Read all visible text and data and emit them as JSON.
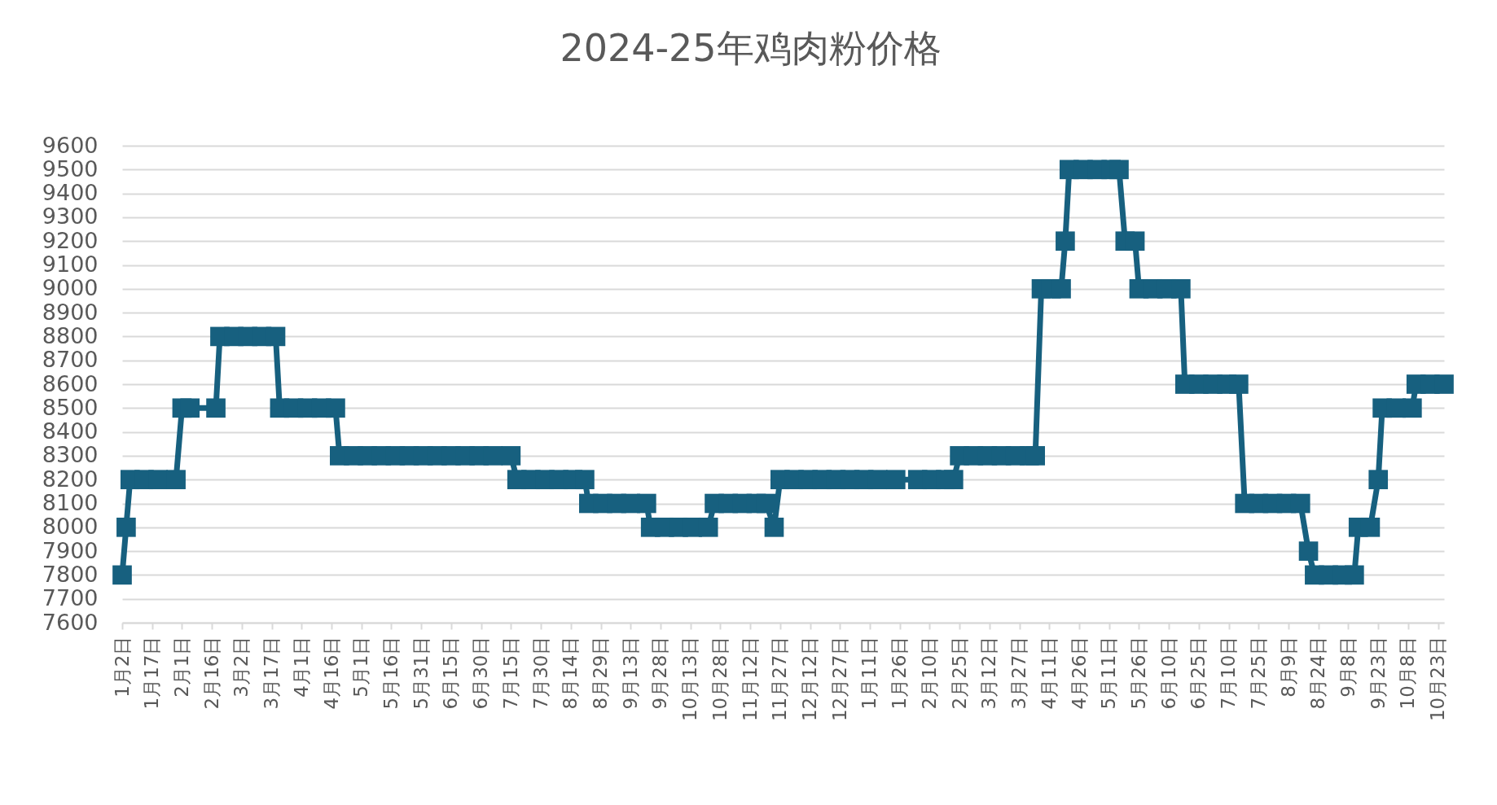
{
  "chart_data": {
    "type": "line",
    "title": "2024-25年鸡肉粉价格",
    "x": [
      "2024-01-02",
      "2024-01-04",
      "2024-01-06",
      "2024-01-13",
      "2024-01-20",
      "2024-01-29",
      "2024-02-01",
      "2024-02-05",
      "2024-02-18",
      "2024-02-20",
      "2024-02-27",
      "2024-03-05",
      "2024-03-12",
      "2024-03-19",
      "2024-03-21",
      "2024-03-28",
      "2024-04-04",
      "2024-04-11",
      "2024-04-18",
      "2024-04-20",
      "2024-04-27",
      "2024-05-04",
      "2024-05-11",
      "2024-05-18",
      "2024-05-25",
      "2024-06-01",
      "2024-06-08",
      "2024-06-15",
      "2024-06-22",
      "2024-06-29",
      "2024-07-06",
      "2024-07-15",
      "2024-07-18",
      "2024-07-25",
      "2024-08-01",
      "2024-08-08",
      "2024-08-15",
      "2024-08-21",
      "2024-08-23",
      "2024-08-30",
      "2024-09-06",
      "2024-09-13",
      "2024-09-21",
      "2024-09-23",
      "2024-09-30",
      "2024-10-07",
      "2024-10-14",
      "2024-10-22",
      "2024-10-25",
      "2024-11-01",
      "2024-11-08",
      "2024-11-15",
      "2024-11-20",
      "2024-11-24",
      "2024-11-27",
      "2024-12-04",
      "2024-12-11",
      "2024-12-18",
      "2024-12-25",
      "2025-01-01",
      "2025-01-08",
      "2025-01-15",
      "2025-01-24",
      "2025-02-04",
      "2025-02-11",
      "2025-02-18",
      "2025-02-22",
      "2025-02-25",
      "2025-03-04",
      "2025-03-11",
      "2025-03-18",
      "2025-03-25",
      "2025-04-01",
      "2025-04-04",
      "2025-04-07",
      "2025-04-12",
      "2025-04-17",
      "2025-04-19",
      "2025-04-21",
      "2025-04-28",
      "2025-05-05",
      "2025-05-12",
      "2025-05-16",
      "2025-05-19",
      "2025-05-24",
      "2025-05-26",
      "2025-06-02",
      "2025-06-09",
      "2025-06-16",
      "2025-06-18",
      "2025-06-25",
      "2025-07-02",
      "2025-07-09",
      "2025-07-15",
      "2025-07-18",
      "2025-07-25",
      "2025-08-01",
      "2025-08-08",
      "2025-08-15",
      "2025-08-19",
      "2025-08-22",
      "2025-08-29",
      "2025-09-05",
      "2025-09-11",
      "2025-09-13",
      "2025-09-19",
      "2025-09-23",
      "2025-09-25",
      "2025-10-02",
      "2025-10-10",
      "2025-10-12",
      "2025-10-19",
      "2025-10-26"
    ],
    "series": [
      {
        "color": "#17607f",
        "values": [
          7800,
          8000,
          8200,
          8200,
          8200,
          8200,
          8500,
          8500,
          8500,
          8800,
          8800,
          8800,
          8800,
          8800,
          8500,
          8500,
          8500,
          8500,
          8500,
          8300,
          8300,
          8300,
          8300,
          8300,
          8300,
          8300,
          8300,
          8300,
          8300,
          8300,
          8300,
          8300,
          8200,
          8200,
          8200,
          8200,
          8200,
          8200,
          8100,
          8100,
          8100,
          8100,
          8100,
          8000,
          8000,
          8000,
          8000,
          8000,
          8100,
          8100,
          8100,
          8100,
          8100,
          8000,
          8200,
          8200,
          8200,
          8200,
          8200,
          8200,
          8200,
          8200,
          8200,
          8200,
          8200,
          8200,
          8200,
          8300,
          8300,
          8300,
          8300,
          8300,
          8300,
          8300,
          9000,
          9000,
          9000,
          9200,
          9500,
          9500,
          9500,
          9500,
          9500,
          9200,
          9200,
          9000,
          9000,
          9000,
          9000,
          8600,
          8600,
          8600,
          8600,
          8600,
          8100,
          8100,
          8100,
          8100,
          8100,
          7900,
          7800,
          7800,
          7800,
          7800,
          8000,
          8000,
          8200,
          8500,
          8500,
          8500,
          8600,
          8600,
          8600
        ]
      }
    ],
    "xlim": [
      "2024-01-02",
      "2025-10-26"
    ],
    "xticks": [
      {
        "value": "2024-01-02",
        "label": "1月2日"
      },
      {
        "value": "2024-01-17",
        "label": "1月17日"
      },
      {
        "value": "2024-02-01",
        "label": "2月1日"
      },
      {
        "value": "2024-02-16",
        "label": "2月16日"
      },
      {
        "value": "2024-03-02",
        "label": "3月2日"
      },
      {
        "value": "2024-03-17",
        "label": "3月17日"
      },
      {
        "value": "2024-04-01",
        "label": "4月1日"
      },
      {
        "value": "2024-04-16",
        "label": "4月16日"
      },
      {
        "value": "2024-05-01",
        "label": "5月1日"
      },
      {
        "value": "2024-05-16",
        "label": "5月16日"
      },
      {
        "value": "2024-05-31",
        "label": "5月31日"
      },
      {
        "value": "2024-06-15",
        "label": "6月15日"
      },
      {
        "value": "2024-06-30",
        "label": "6月30日"
      },
      {
        "value": "2024-07-15",
        "label": "7月15日"
      },
      {
        "value": "2024-07-30",
        "label": "7月30日"
      },
      {
        "value": "2024-08-14",
        "label": "8月14日"
      },
      {
        "value": "2024-08-29",
        "label": "8月29日"
      },
      {
        "value": "2024-09-13",
        "label": "9月13日"
      },
      {
        "value": "2024-09-28",
        "label": "9月28日"
      },
      {
        "value": "2024-10-13",
        "label": "10月13日"
      },
      {
        "value": "2024-10-28",
        "label": "10月28日"
      },
      {
        "value": "2024-11-12",
        "label": "11月12日"
      },
      {
        "value": "2024-11-27",
        "label": "11月27日"
      },
      {
        "value": "2024-12-12",
        "label": "12月12日"
      },
      {
        "value": "2024-12-27",
        "label": "12月27日"
      },
      {
        "value": "2025-01-11",
        "label": "1月11日"
      },
      {
        "value": "2025-01-26",
        "label": "1月26日"
      },
      {
        "value": "2025-02-10",
        "label": "2月10日"
      },
      {
        "value": "2025-02-25",
        "label": "2月25日"
      },
      {
        "value": "2025-03-12",
        "label": "3月12日"
      },
      {
        "value": "2025-03-27",
        "label": "3月27日"
      },
      {
        "value": "2025-04-11",
        "label": "4月11日"
      },
      {
        "value": "2025-04-26",
        "label": "4月26日"
      },
      {
        "value": "2025-05-11",
        "label": "5月11日"
      },
      {
        "value": "2025-05-26",
        "label": "5月26日"
      },
      {
        "value": "2025-06-10",
        "label": "6月10日"
      },
      {
        "value": "2025-06-25",
        "label": "6月25日"
      },
      {
        "value": "2025-07-10",
        "label": "7月10日"
      },
      {
        "value": "2025-07-25",
        "label": "7月25日"
      },
      {
        "value": "2025-08-09",
        "label": "8月9日"
      },
      {
        "value": "2025-08-24",
        "label": "8月24日"
      },
      {
        "value": "2025-09-08",
        "label": "9月8日"
      },
      {
        "value": "2025-09-23",
        "label": "9月23日"
      },
      {
        "value": "2025-10-08",
        "label": "10月8日"
      },
      {
        "value": "2025-10-23",
        "label": "10月23日"
      }
    ],
    "ylim": [
      7600,
      9600
    ],
    "yticks": [
      7600,
      7700,
      7800,
      7900,
      8000,
      8100,
      8200,
      8300,
      8400,
      8500,
      8600,
      8700,
      8800,
      8900,
      9000,
      9100,
      9200,
      9300,
      9400,
      9500,
      9600
    ],
    "grid": "y",
    "marker": "square",
    "line_style": "solid"
  }
}
